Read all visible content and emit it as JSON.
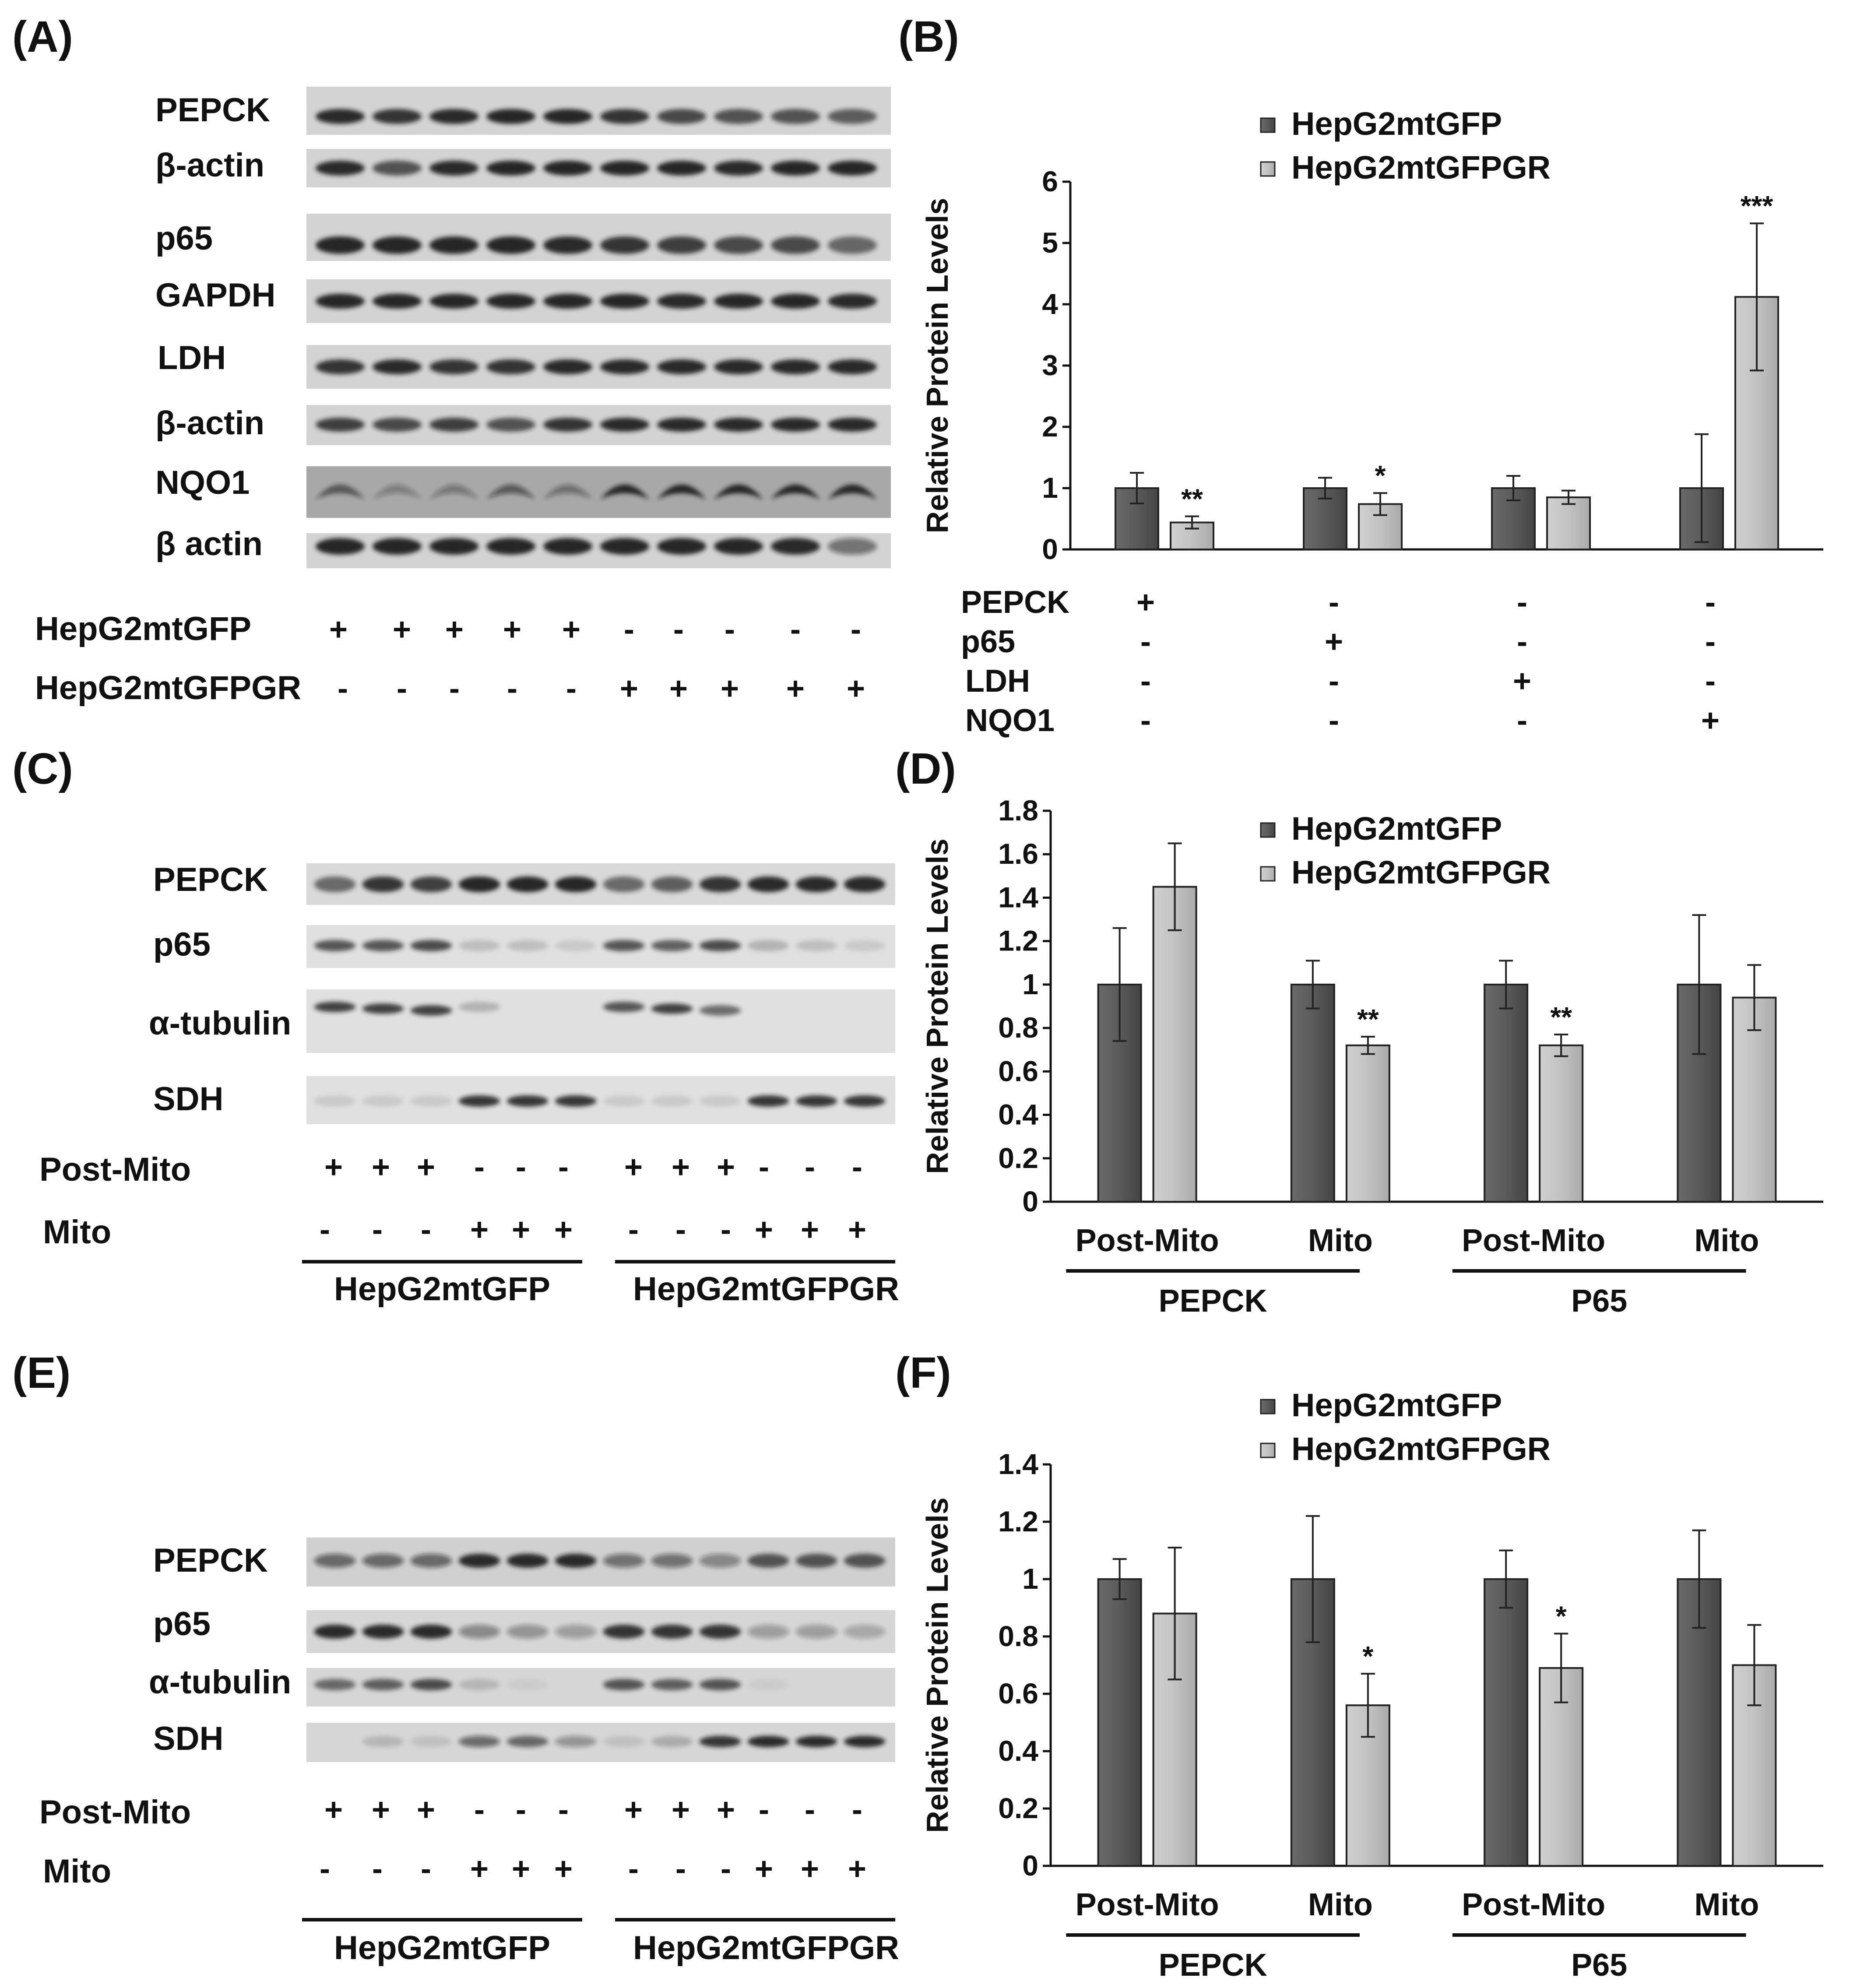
{
  "colors": {
    "series_dark": "#555555",
    "series_light": "#c2c2c2",
    "axis": "#111111",
    "blot_bg": "#d3d3d3",
    "band": "#1a1a1a"
  },
  "panels": {
    "A": {
      "letter": "(A)",
      "rows": [
        {
          "label": "PEPCK",
          "intensities": [
            0.9,
            0.85,
            0.9,
            0.95,
            0.95,
            0.85,
            0.75,
            0.7,
            0.7,
            0.65
          ]
        },
        {
          "label": "β-actin",
          "intensities": [
            0.9,
            0.7,
            0.9,
            0.95,
            0.95,
            0.95,
            0.95,
            0.9,
            0.95,
            0.95
          ]
        },
        {
          "label": "p65",
          "intensities": [
            0.95,
            0.95,
            0.95,
            0.95,
            0.9,
            0.85,
            0.8,
            0.75,
            0.75,
            0.6
          ]
        },
        {
          "label": "GAPDH",
          "intensities": [
            0.95,
            0.95,
            0.95,
            0.95,
            0.95,
            0.95,
            0.9,
            0.95,
            0.95,
            0.9
          ]
        },
        {
          "label": "LDH",
          "intensities": [
            0.85,
            0.9,
            0.85,
            0.85,
            0.9,
            0.9,
            0.9,
            0.9,
            0.9,
            0.9
          ]
        },
        {
          "label": "β-actin",
          "intensities": [
            0.8,
            0.75,
            0.8,
            0.7,
            0.85,
            0.9,
            0.9,
            0.9,
            0.9,
            0.9
          ]
        },
        {
          "label": "NQO1",
          "intensities": [
            0.6,
            0.3,
            0.35,
            0.55,
            0.4,
            0.95,
            0.95,
            0.95,
            0.95,
            0.9
          ]
        },
        {
          "label": "β actin",
          "intensities": [
            0.95,
            0.95,
            0.95,
            0.95,
            0.95,
            0.95,
            0.95,
            0.95,
            0.9,
            0.5
          ]
        }
      ],
      "conditions": [
        {
          "label": "HepG2mtGFP",
          "signs": [
            "+",
            "+",
            "+",
            "+",
            "+",
            "-",
            "-",
            "-",
            "-",
            "-"
          ]
        },
        {
          "label": "HepG2mtGFPGR",
          "signs": [
            "-",
            "-",
            "-",
            "-",
            "-",
            "+",
            "+",
            "+",
            "+",
            "+"
          ]
        }
      ]
    },
    "C": {
      "letter": "(C)",
      "rows": [
        {
          "label": "PEPCK",
          "intensities": [
            0.6,
            0.85,
            0.8,
            0.95,
            0.95,
            0.95,
            0.6,
            0.65,
            0.85,
            0.9,
            0.9,
            0.9
          ]
        },
        {
          "label": "p65",
          "intensities": [
            0.7,
            0.7,
            0.75,
            0.15,
            0.15,
            0.1,
            0.7,
            0.65,
            0.75,
            0.2,
            0.15,
            0.1
          ]
        },
        {
          "label": "α-tubulin",
          "intensities": [
            0.8,
            0.8,
            0.8,
            0.2,
            0,
            0,
            0.7,
            0.8,
            0.6,
            0,
            0,
            0
          ]
        },
        {
          "label": "SDH",
          "intensities": [
            0.1,
            0.1,
            0.1,
            0.85,
            0.85,
            0.85,
            0.1,
            0.1,
            0.1,
            0.85,
            0.85,
            0.85
          ]
        }
      ],
      "conditions": [
        {
          "label": "Post-Mito",
          "signs": [
            "+",
            "+",
            "+",
            "-",
            "-",
            "-",
            "+",
            "+",
            "+",
            "-",
            "-",
            "-"
          ]
        },
        {
          "label": "Mito",
          "signs": [
            "-",
            "-",
            "-",
            "+",
            "+",
            "+",
            "-",
            "-",
            "-",
            "+",
            "+",
            "+"
          ]
        }
      ],
      "groups": [
        "HepG2mtGFP",
        "HepG2mtGFPGR"
      ]
    },
    "E": {
      "letter": "(E)",
      "rows": [
        {
          "label": "PEPCK",
          "intensities": [
            0.55,
            0.55,
            0.55,
            0.9,
            0.9,
            0.9,
            0.5,
            0.5,
            0.4,
            0.7,
            0.7,
            0.7
          ]
        },
        {
          "label": "p65",
          "intensities": [
            0.9,
            0.9,
            0.9,
            0.4,
            0.35,
            0.3,
            0.85,
            0.85,
            0.85,
            0.3,
            0.3,
            0.25
          ]
        },
        {
          "label": "α-tubulin",
          "intensities": [
            0.6,
            0.65,
            0.75,
            0.15,
            0.05,
            0,
            0.7,
            0.65,
            0.7,
            0.05,
            0,
            0
          ]
        },
        {
          "label": "SDH",
          "intensities": [
            0,
            0.15,
            0.1,
            0.55,
            0.6,
            0.35,
            0.1,
            0.2,
            0.85,
            0.9,
            0.9,
            0.9
          ]
        }
      ],
      "conditions": [
        {
          "label": "Post-Mito",
          "signs": [
            "+",
            "+",
            "+",
            "-",
            "-",
            "-",
            "+",
            "+",
            "+",
            "-",
            "-",
            "-"
          ]
        },
        {
          "label": "Mito",
          "signs": [
            "-",
            "-",
            "-",
            "+",
            "+",
            "+",
            "-",
            "-",
            "-",
            "+",
            "+",
            "+"
          ]
        }
      ],
      "groups": [
        "HepG2mtGFP",
        "HepG2mtGFPGR"
      ]
    }
  },
  "chart_data": [
    {
      "panel": "(B)",
      "type": "bar",
      "ylabel": "Relative Protein Levels",
      "ylim": [
        0,
        6
      ],
      "yticks": [
        "0",
        "1",
        "2",
        "3",
        "4",
        "5",
        "6"
      ],
      "legend": [
        "HepG2mtGFP",
        "HepG2mtGFPGR"
      ],
      "legend_position": "top",
      "series": [
        {
          "name": "HepG2mtGFP",
          "values": [
            1,
            1,
            1,
            1
          ],
          "errors": [
            0.25,
            0.17,
            0.2,
            0.88
          ]
        },
        {
          "name": "HepG2mtGFPGR",
          "values": [
            0.44,
            0.74,
            0.85,
            4.12
          ],
          "errors": [
            0.1,
            0.18,
            0.11,
            1.2
          ]
        }
      ],
      "significance": [
        "**",
        "*",
        "",
        "***"
      ],
      "table": {
        "row_labels": [
          "PEPCK",
          "p65",
          "LDH",
          "NQO1"
        ],
        "signs": [
          [
            "+",
            "-",
            "-",
            "-"
          ],
          [
            "-",
            "+",
            "-",
            "-"
          ],
          [
            "-",
            "-",
            "+",
            "-"
          ],
          [
            "-",
            "-",
            "-",
            "+"
          ]
        ]
      }
    },
    {
      "panel": "(D)",
      "type": "bar",
      "ylabel": "Relative Protein Levels",
      "ylim": [
        0,
        1.8
      ],
      "yticks": [
        "0",
        "0.2",
        "0.4",
        "0.6",
        "0.8",
        "1",
        "1.2",
        "1.4",
        "1.6",
        "1.8"
      ],
      "legend": [
        "HepG2mtGFP",
        "HepG2mtGFPGR"
      ],
      "legend_position": "top-right",
      "categories": [
        "Post-Mito",
        "Mito",
        "Post-Mito",
        "Mito"
      ],
      "groups": [
        "PEPCK",
        "P65"
      ],
      "series": [
        {
          "name": "HepG2mtGFP",
          "values": [
            1,
            1,
            1,
            1
          ],
          "errors": [
            0.26,
            0.11,
            0.11,
            0.32
          ]
        },
        {
          "name": "HepG2mtGFPGR",
          "values": [
            1.45,
            0.72,
            0.72,
            0.94
          ],
          "errors": [
            0.2,
            0.04,
            0.05,
            0.15
          ]
        }
      ],
      "significance": [
        "",
        "**",
        "**",
        ""
      ]
    },
    {
      "panel": "(F)",
      "type": "bar",
      "ylabel": "Relative Protein Levels",
      "ylim": [
        0,
        1.4
      ],
      "yticks": [
        "0",
        "0.2",
        "0.4",
        "0.6",
        "0.8",
        "1",
        "1.2",
        "1.4"
      ],
      "legend": [
        "HepG2mtGFP",
        "HepG2mtGFPGR"
      ],
      "legend_position": "top-right",
      "categories": [
        "Post-Mito",
        "Mito",
        "Post-Mito",
        "Mito"
      ],
      "groups": [
        "PEPCK",
        "P65"
      ],
      "series": [
        {
          "name": "HepG2mtGFP",
          "values": [
            1,
            1,
            1,
            1
          ],
          "errors": [
            0.07,
            0.22,
            0.1,
            0.17
          ]
        },
        {
          "name": "HepG2mtGFPGR",
          "values": [
            0.88,
            0.56,
            0.69,
            0.7
          ],
          "errors": [
            0.23,
            0.11,
            0.12,
            0.14
          ]
        }
      ],
      "significance": [
        "",
        "*",
        "*",
        ""
      ]
    }
  ]
}
